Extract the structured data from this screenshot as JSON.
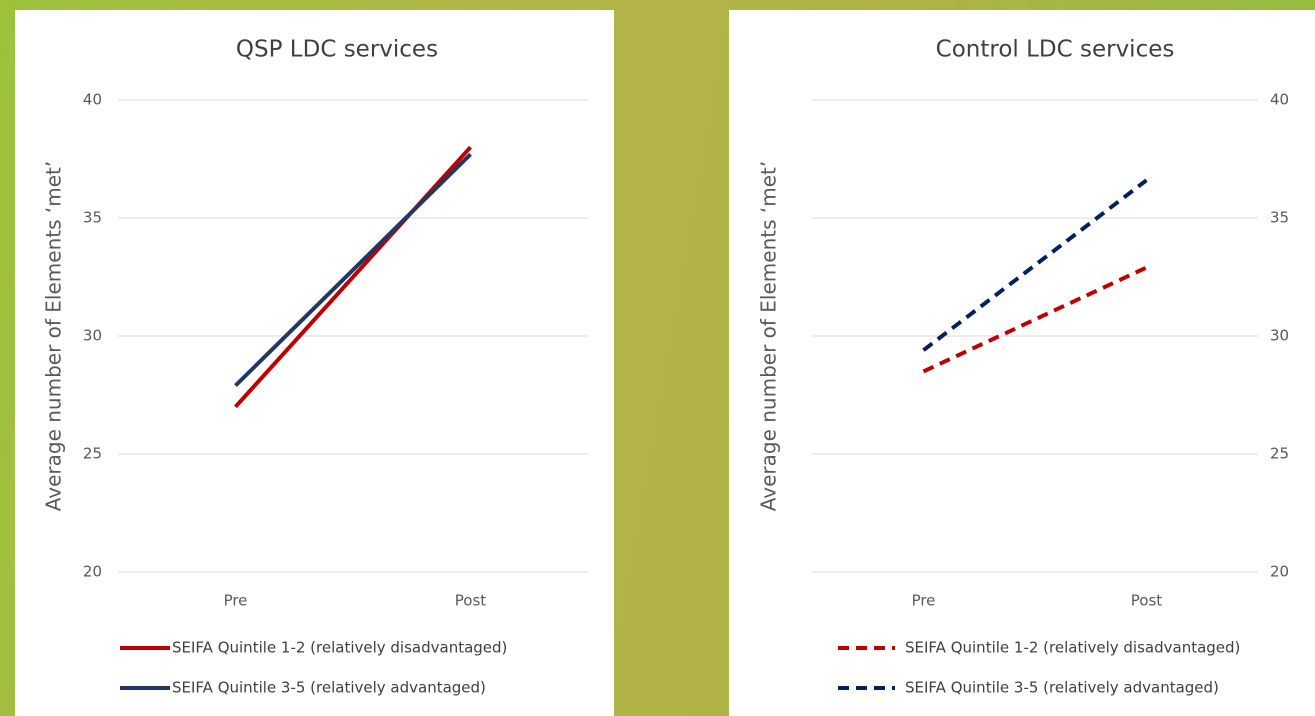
{
  "chart_data": [
    {
      "type": "line",
      "title": "QSP LDC services",
      "y_label": "Average number of Elements ‘met’",
      "categories": [
        "Pre",
        "Post"
      ],
      "series": [
        {
          "name": "SEIFA Quintile 1-2 (relatively disadvantaged)",
          "color": "#c00000",
          "line_style": "solid",
          "values": [
            27,
            38
          ]
        },
        {
          "name": "SEIFA Quintile 3-5 (relatively advantaged)",
          "color": "#203864",
          "line_style": "solid",
          "values": [
            27.9,
            37.7
          ]
        }
      ],
      "ylim": [
        20,
        40
      ],
      "yticks": [
        20,
        25,
        30,
        35,
        40
      ],
      "grid": true,
      "y_axis_position": "left",
      "legend": "bottom"
    },
    {
      "type": "line",
      "title": "Control LDC services",
      "y_label": "Average number of Elements ‘met’",
      "categories": [
        "Pre",
        "Post"
      ],
      "series": [
        {
          "name": "SEIFA Quintile 1-2 (relatively disadvantaged)",
          "color": "#c00000",
          "line_style": "dashed",
          "values": [
            28.5,
            32.9
          ]
        },
        {
          "name": "SEIFA Quintile 3-5 (relatively advantaged)",
          "color": "#002060",
          "line_style": "dashed",
          "values": [
            29.4,
            36.6
          ]
        }
      ],
      "ylim": [
        20,
        40
      ],
      "yticks": [
        20,
        25,
        30,
        35,
        40
      ],
      "grid": true,
      "y_axis_position": "right",
      "legend": "bottom"
    }
  ]
}
